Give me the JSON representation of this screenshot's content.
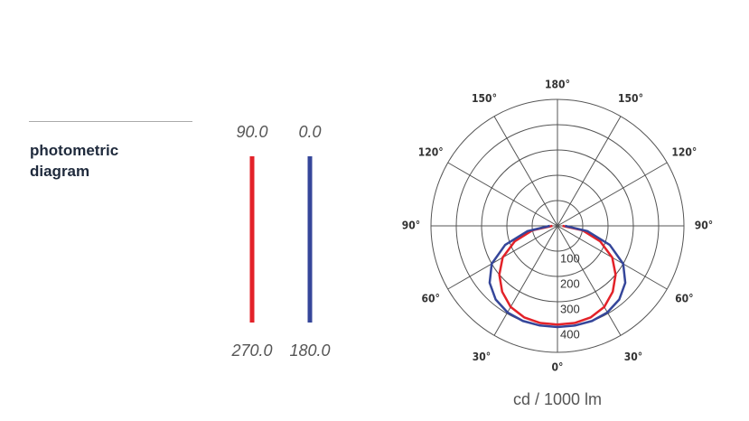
{
  "chart_data": {
    "type": "polar",
    "title": "photometric diagram",
    "radial_axis_label": "cd / 1000 lm",
    "rlim": [
      0,
      500
    ],
    "rticks": [
      100,
      200,
      300,
      400
    ],
    "thetaticks": [
      {
        "value": 0,
        "label": "0°"
      },
      {
        "value": 30,
        "label": "30°"
      },
      {
        "value": 60,
        "label": "60°"
      },
      {
        "value": 90,
        "label": "90°"
      },
      {
        "value": 120,
        "label": "120°"
      },
      {
        "value": 150,
        "label": "150°"
      },
      {
        "value": 180,
        "label": "180°"
      }
    ],
    "theta": [
      0,
      10,
      20,
      30,
      40,
      50,
      60,
      70,
      80,
      90
    ],
    "series": [
      {
        "plane_labels": [
          "90.0",
          "270.0"
        ],
        "color": "#e32229",
        "values": [
          390,
          390,
          385,
          370,
          340,
          300,
          250,
          180,
          100,
          20
        ]
      },
      {
        "plane_labels": [
          "0.0",
          "180.0"
        ],
        "color": "#35469a",
        "values": [
          400,
          400,
          400,
          395,
          380,
          350,
          300,
          220,
          120,
          30
        ]
      }
    ]
  }
}
